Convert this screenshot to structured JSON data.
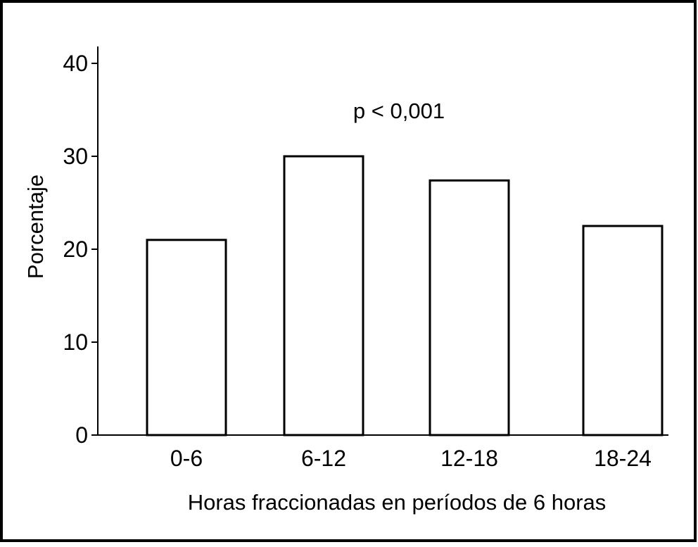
{
  "chart_data": {
    "type": "bar",
    "categories": [
      "0-6",
      "6-12",
      "12-18",
      "18-24"
    ],
    "values": [
      21,
      30,
      27.4,
      22.5
    ],
    "title": "",
    "xlabel": "Horas fraccionadas en períodos de 6 horas",
    "ylabel": "Porcentaje",
    "ylim": [
      0,
      40
    ],
    "yticks": [
      0,
      10,
      20,
      30,
      40
    ],
    "annotation": "p < 0,001",
    "grid": false,
    "legend": "none",
    "bar_fill": "#ffffff",
    "bar_stroke": "#000000"
  }
}
